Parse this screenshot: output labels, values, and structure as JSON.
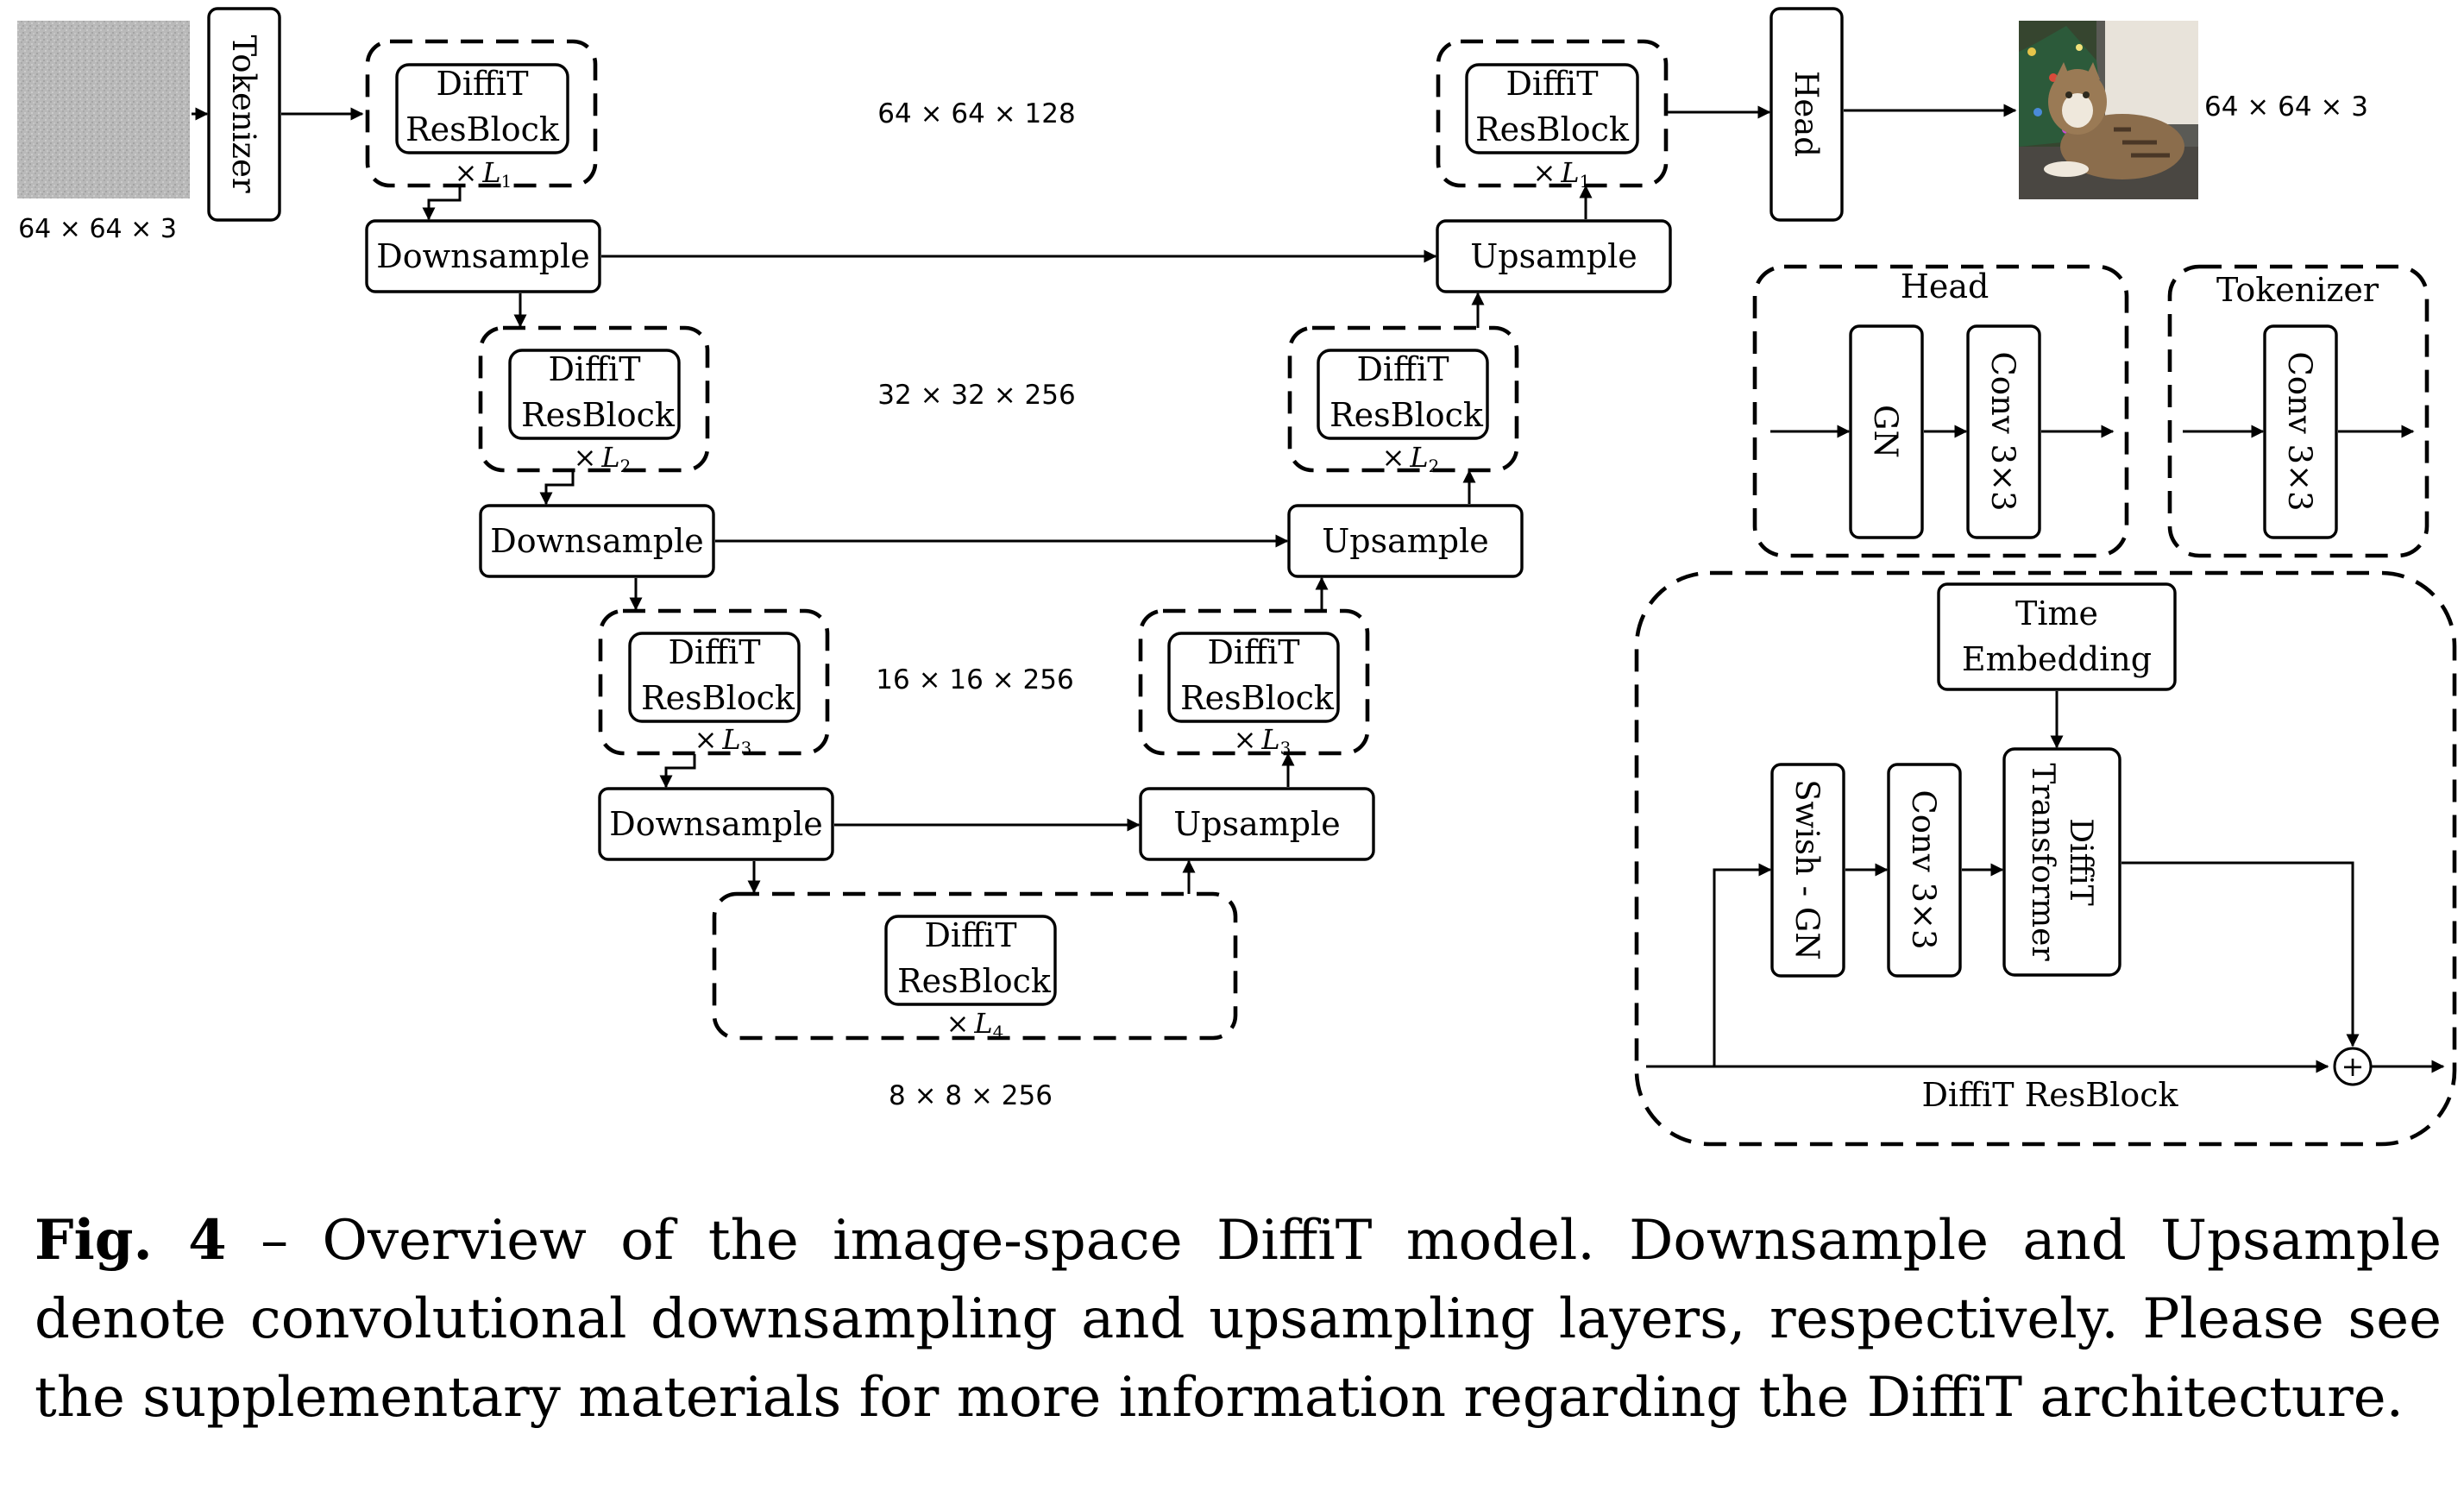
{
  "labels": {
    "dim_input": "64 × 64 × 3",
    "dim_output": "64 × 64 × 3",
    "dim_level1": "64 × 64 × 128",
    "dim_level2": "32 × 32 × 256",
    "dim_level3": "16 × 16 × 256",
    "dim_level4": "8 × 8 × 256",
    "tokenizer": "Tokenizer",
    "head": "Head",
    "diffit": "DiffiT",
    "resblock": "ResBlock",
    "times": "×",
    "L": "L",
    "sub1": "1",
    "sub2": "2",
    "sub3": "3",
    "sub4": "4",
    "downsample": "Downsample",
    "upsample": "Upsample"
  },
  "head_panel": {
    "title": "Head",
    "gn": "GN",
    "conv": "Conv 3×3"
  },
  "tokenizer_panel": {
    "title": "Tokenizer",
    "conv": "Conv 3×3"
  },
  "resblock_panel": {
    "time1": "Time",
    "time2": "Embedding",
    "swish": "Swish - GN",
    "conv": "Conv 3×3",
    "transformer1": "DiffiT",
    "transformer2": "Transformer",
    "plus": "+",
    "footer": "DiffiT ResBlock"
  },
  "caption": {
    "fig": "Fig. 4",
    "text": " – Overview of the image-space DiffiT model. Downsample and Upsample denote convolutional downsampling and upsampling layers, respectively. Please see the supplementary materials for more information regarding the DiffiT architecture."
  },
  "colors": {
    "line": "#000000",
    "noise": "#b9b9b9",
    "background": "#ffffff"
  },
  "icons": {
    "input_image": "gaussian-noise-image",
    "output_image": "cat-photo-image"
  }
}
